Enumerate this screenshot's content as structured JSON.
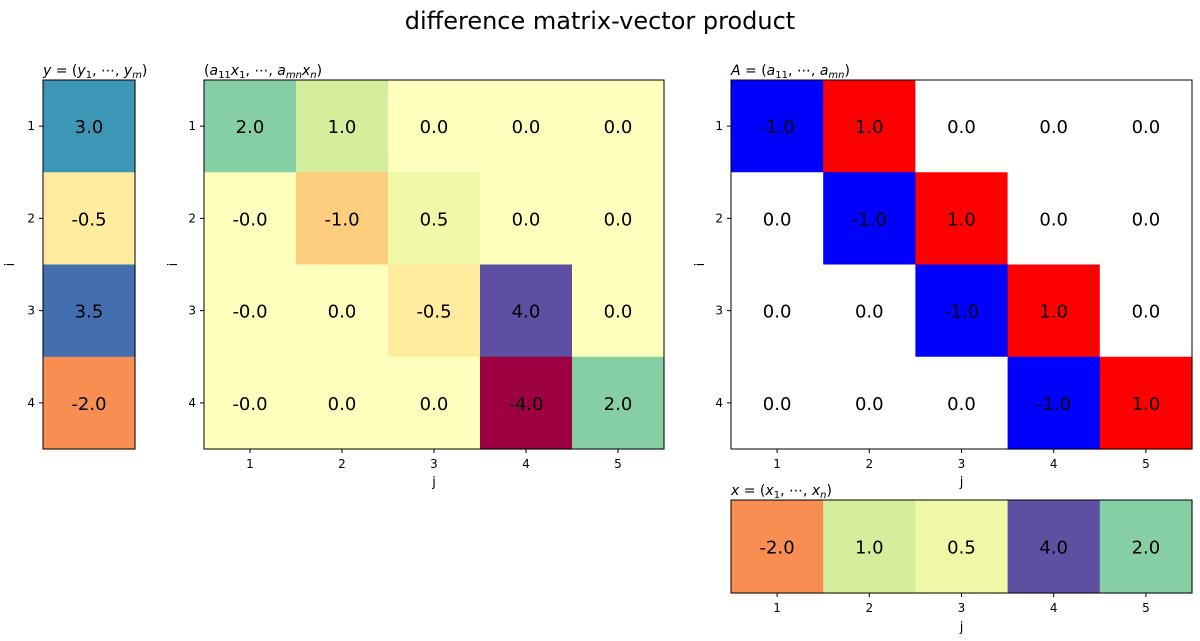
{
  "figure_title": "difference matrix-vector product",
  "chart_data": [
    {
      "type": "heatmap",
      "id": "y",
      "title": "y = (y1, ⋯, ym)",
      "ylabel": "i",
      "xlabel": "",
      "yticks": [
        "1",
        "2",
        "3",
        "4"
      ],
      "xticks": [],
      "cmap": "Spectral",
      "values": [
        [
          3.0
        ],
        [
          -0.5
        ],
        [
          3.5
        ],
        [
          -2.0
        ]
      ],
      "labels": [
        [
          "3.0"
        ],
        [
          "-0.5"
        ],
        [
          "3.5"
        ],
        [
          "-2.0"
        ]
      ]
    },
    {
      "type": "heatmap",
      "id": "ax",
      "title": "(a11x1, ⋯, amnxn)",
      "ylabel": "i",
      "xlabel": "j",
      "yticks": [
        "1",
        "2",
        "3",
        "4"
      ],
      "xticks": [
        "1",
        "2",
        "3",
        "4",
        "5"
      ],
      "cmap": "Spectral",
      "values": [
        [
          2.0,
          1.0,
          0.0,
          0.0,
          0.0
        ],
        [
          0.0,
          -1.0,
          0.5,
          0.0,
          0.0
        ],
        [
          0.0,
          0.0,
          -0.5,
          4.0,
          0.0
        ],
        [
          0.0,
          0.0,
          0.0,
          -4.0,
          2.0
        ]
      ],
      "labels": [
        [
          "2.0",
          "1.0",
          "0.0",
          "0.0",
          "0.0"
        ],
        [
          "-0.0",
          "-1.0",
          "0.5",
          "0.0",
          "0.0"
        ],
        [
          "-0.0",
          "0.0",
          "-0.5",
          "4.0",
          "0.0"
        ],
        [
          "-0.0",
          "0.0",
          "0.0",
          "-4.0",
          "2.0"
        ]
      ]
    },
    {
      "type": "heatmap",
      "id": "A",
      "title": "A = (a11, ⋯, amn)",
      "ylabel": "i",
      "xlabel": "j",
      "yticks": [
        "1",
        "2",
        "3",
        "4"
      ],
      "xticks": [
        "1",
        "2",
        "3",
        "4",
        "5"
      ],
      "cmap": "bwr",
      "values": [
        [
          -1.0,
          1.0,
          0.0,
          0.0,
          0.0
        ],
        [
          0.0,
          -1.0,
          1.0,
          0.0,
          0.0
        ],
        [
          0.0,
          0.0,
          -1.0,
          1.0,
          0.0
        ],
        [
          0.0,
          0.0,
          0.0,
          -1.0,
          1.0
        ]
      ],
      "labels": [
        [
          "-1.0",
          "1.0",
          "0.0",
          "0.0",
          "0.0"
        ],
        [
          "0.0",
          "-1.0",
          "1.0",
          "0.0",
          "0.0"
        ],
        [
          "0.0",
          "0.0",
          "-1.0",
          "1.0",
          "0.0"
        ],
        [
          "0.0",
          "0.0",
          "0.0",
          "-1.0",
          "1.0"
        ]
      ]
    },
    {
      "type": "heatmap",
      "id": "x",
      "title": "x = (x1, ⋯, xn)",
      "ylabel": "",
      "xlabel": "j",
      "yticks": [],
      "xticks": [
        "1",
        "2",
        "3",
        "4",
        "5"
      ],
      "cmap": "Spectral",
      "values": [
        [
          -2.0,
          1.0,
          0.5,
          4.0,
          2.0
        ]
      ],
      "labels": [
        [
          "-2.0",
          "1.0",
          "0.5",
          "4.0",
          "2.0"
        ]
      ]
    }
  ],
  "colors": {
    "spectral_scale": [
      {
        "v": -4.0,
        "c": "#9e0142"
      },
      {
        "v": -2.0,
        "c": "#f98e52"
      },
      {
        "v": -1.0,
        "c": "#fdce7d"
      },
      {
        "v": -0.5,
        "c": "#feeb9d"
      },
      {
        "v": 0.0,
        "c": "#fefebd"
      },
      {
        "v": 0.5,
        "c": "#eff8a6"
      },
      {
        "v": 1.0,
        "c": "#d5ee9b"
      },
      {
        "v": 2.0,
        "c": "#86cfa5"
      },
      {
        "v": 3.0,
        "c": "#3e96b6"
      },
      {
        "v": 3.5,
        "c": "#436eb0"
      },
      {
        "v": 4.0,
        "c": "#5e4fa2"
      }
    ],
    "bwr_negative": "#0000ff",
    "bwr_zero": "#ffffff",
    "bwr_positive": "#ff0000"
  }
}
